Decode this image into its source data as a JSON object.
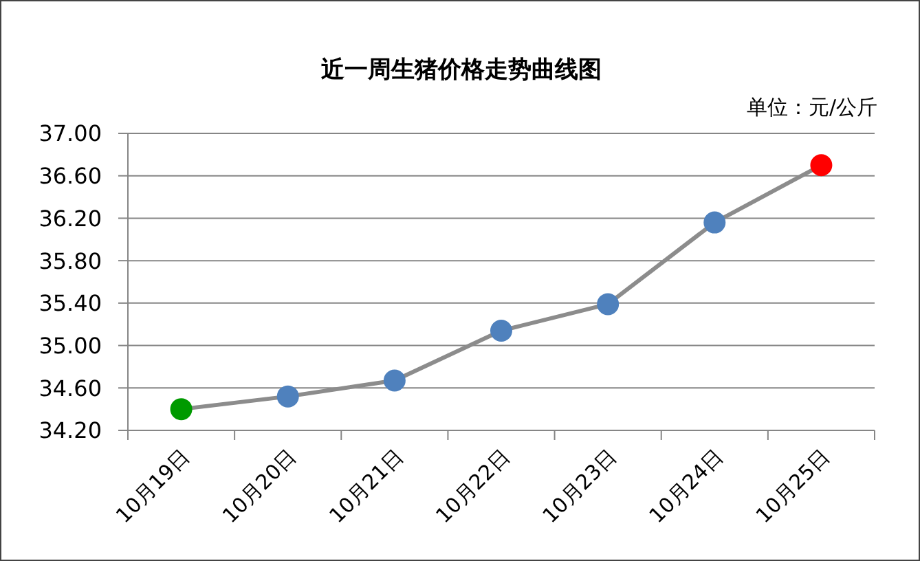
{
  "chart_data": {
    "type": "line",
    "title": "近一周生猪价格走势曲线图",
    "ylabel": "单位：元/公斤",
    "categories": [
      "10月19日",
      "10月20日",
      "10月21日",
      "10月22日",
      "10月23日",
      "10月24日",
      "10月25日"
    ],
    "series": [
      {
        "color": "#8c8c8c",
        "colors": [
          "#009a00",
          "#4f81bd",
          "#4f81bd",
          "#4f81bd",
          "#4f81bd",
          "#4f81bd",
          "#ff0000"
        ],
        "values": [
          34.4,
          34.52,
          34.67,
          35.14,
          35.39,
          36.16,
          36.7
        ]
      }
    ],
    "ylim": [
      34.2,
      37.0
    ],
    "yticks": [
      {
        "value": 34.2,
        "label": "34.20"
      },
      {
        "value": 34.6,
        "label": "34.60"
      },
      {
        "value": 35.0,
        "label": "35.00"
      },
      {
        "value": 35.4,
        "label": "35.40"
      },
      {
        "value": 35.8,
        "label": "35.80"
      },
      {
        "value": 36.2,
        "label": "36.20"
      },
      {
        "value": 36.6,
        "label": "36.60"
      },
      {
        "value": 37.0,
        "label": "37.00"
      }
    ],
    "grid": "y",
    "marker": "circle",
    "line_style": "solid"
  }
}
